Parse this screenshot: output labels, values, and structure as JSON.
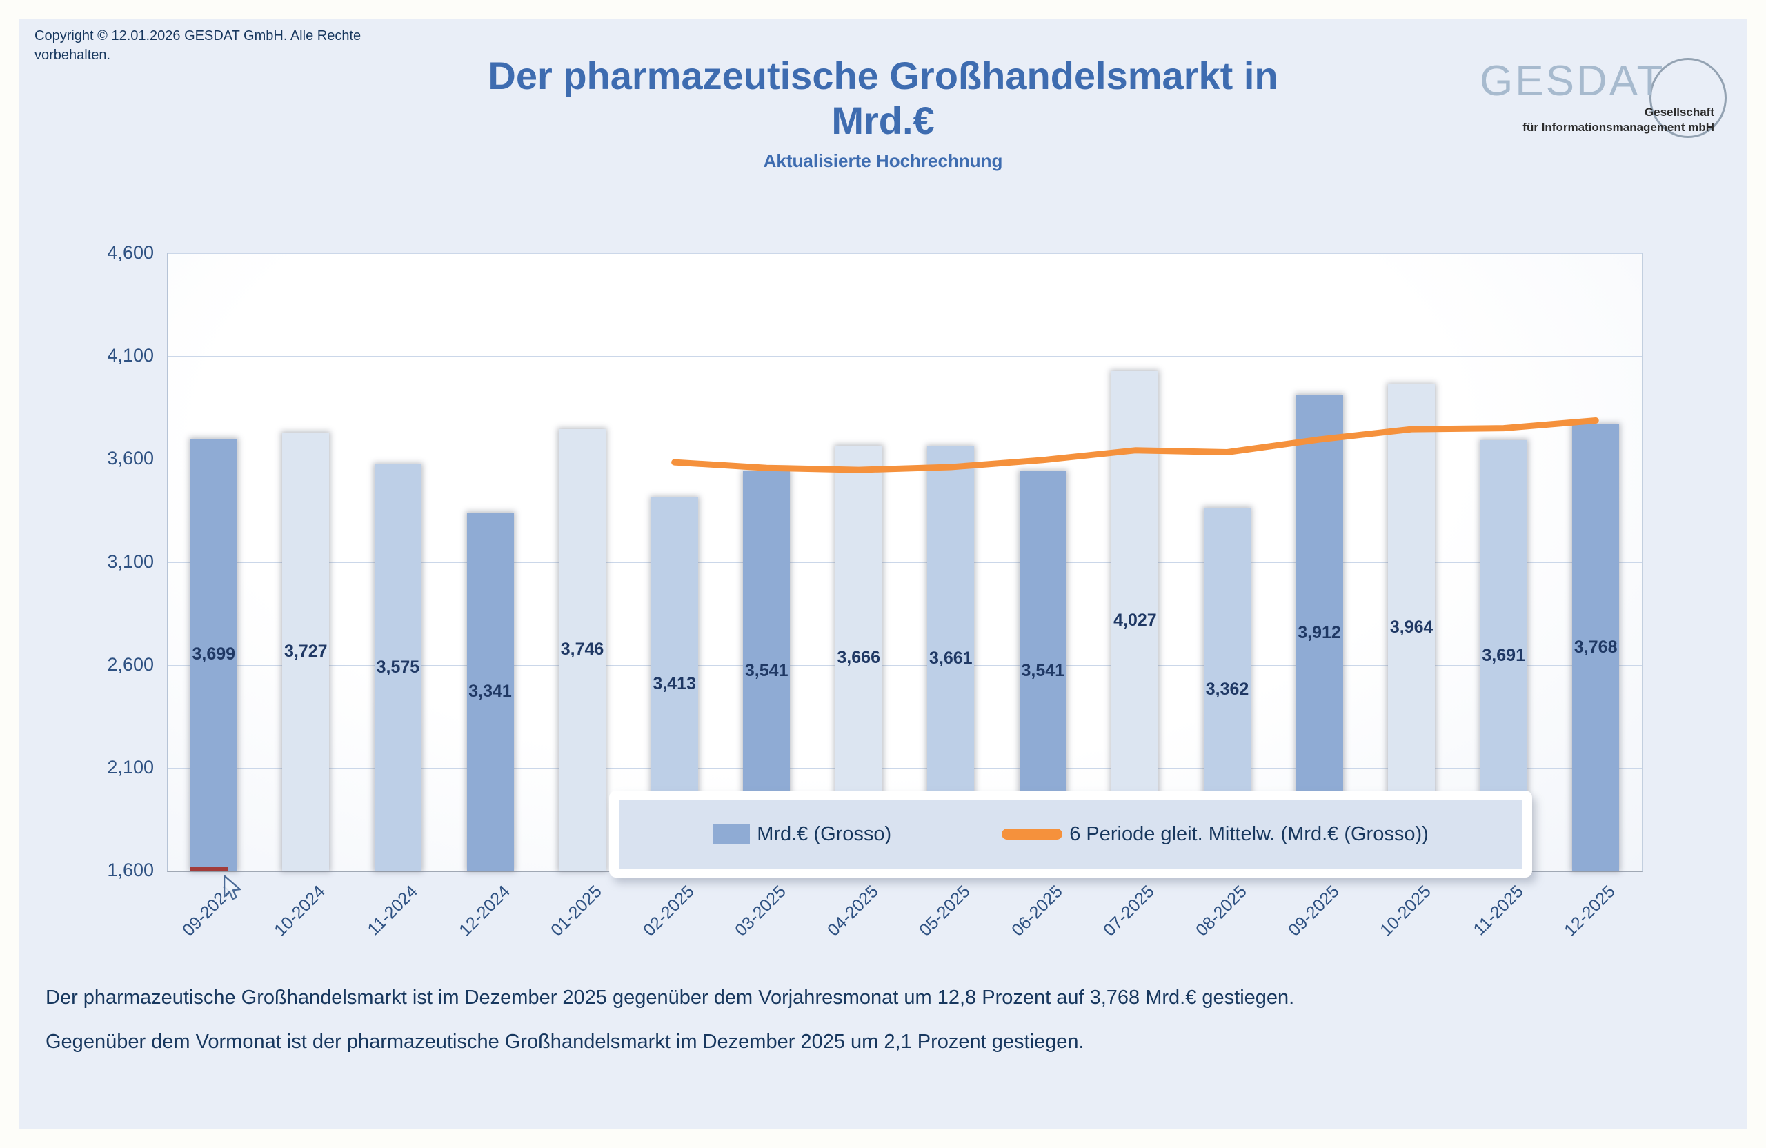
{
  "header": {
    "copyright_line1": "Copyright © 12.01.2026 GESDAT GmbH. Alle Rechte",
    "copyright_line2": "vorbehalten.",
    "title_line1": "Der pharmazeutische Großhandelsmarkt in",
    "title_line2": "Mrd.€",
    "subtitle": "Aktualisierte Hochrechnung"
  },
  "logo": {
    "name": "GESDAT",
    "sub1": "Gesellschaft",
    "sub2": "für Informationsmanagement mbH"
  },
  "chart_data": {
    "type": "bar+line",
    "categories": [
      "09-2024",
      "10-2024",
      "11-2024",
      "12-2024",
      "01-2025",
      "02-2025",
      "03-2025",
      "04-2025",
      "05-2025",
      "06-2025",
      "07-2025",
      "08-2025",
      "09-2025",
      "10-2025",
      "11-2025",
      "12-2025"
    ],
    "series": [
      {
        "name": "Mrd.€ (Grosso)",
        "type": "bar",
        "values": [
          3699,
          3727,
          3575,
          3341,
          3746,
          3413,
          3541,
          3666,
          3661,
          3541,
          4027,
          3362,
          3912,
          3964,
          3691,
          3768
        ]
      },
      {
        "name": "6 Periode gleit. Mittelw. (Mrd.€ (Grosso))",
        "type": "line",
        "values": [
          null,
          null,
          null,
          null,
          null,
          3584,
          3557,
          3547,
          3561,
          3595,
          3642,
          3633,
          3695,
          3745,
          3750,
          3787
        ]
      }
    ],
    "value_labels": [
      "3,699",
      "3,727",
      "3,575",
      "3,341",
      "3,746",
      "3,413",
      "3,541",
      "3,666",
      "3,661",
      "3,541",
      "4,027",
      "3,362",
      "3,912",
      "3,964",
      "3,691",
      "3,768"
    ],
    "bar_shades": [
      "medium",
      "pale",
      "light",
      "medium",
      "pale",
      "light",
      "medium",
      "pale",
      "light",
      "medium",
      "pale",
      "light",
      "medium",
      "pale",
      "light",
      "medium"
    ],
    "yticks": [
      {
        "value": 4600,
        "label": "4,600"
      },
      {
        "value": 4100,
        "label": "4,100"
      },
      {
        "value": 3600,
        "label": "3,600"
      },
      {
        "value": 3100,
        "label": "3,100"
      },
      {
        "value": 2600,
        "label": "2,600"
      },
      {
        "value": 2100,
        "label": "2,100"
      },
      {
        "value": 1600,
        "label": "1,600"
      }
    ],
    "ylim": [
      1600,
      4600
    ],
    "grid": true,
    "legend_position": "bottom-center-overlay",
    "anomaly_marker": {
      "category": "09-2024",
      "color": "#a23c3a"
    }
  },
  "footer": {
    "line1": "Der pharmazeutische Großhandelsmarkt ist im Dezember 2025 gegenüber dem Vorjahresmonat um 12,8 Prozent auf 3,768 Mrd.€ gestiegen.",
    "line2": "Gegenüber dem Vormonat ist der pharmazeutische Großhandelsmarkt im Dezember 2025 um 2,1 Prozent gestiegen."
  },
  "colors": {
    "bar_medium": "#8fabd4",
    "bar_light": "#bdcfe7",
    "bar_pale": "#dce5f1",
    "line": "#f5913c",
    "title_blue": "#3e6cb0",
    "text_navy": "#17375e",
    "marker_red": "#a23c3a"
  }
}
